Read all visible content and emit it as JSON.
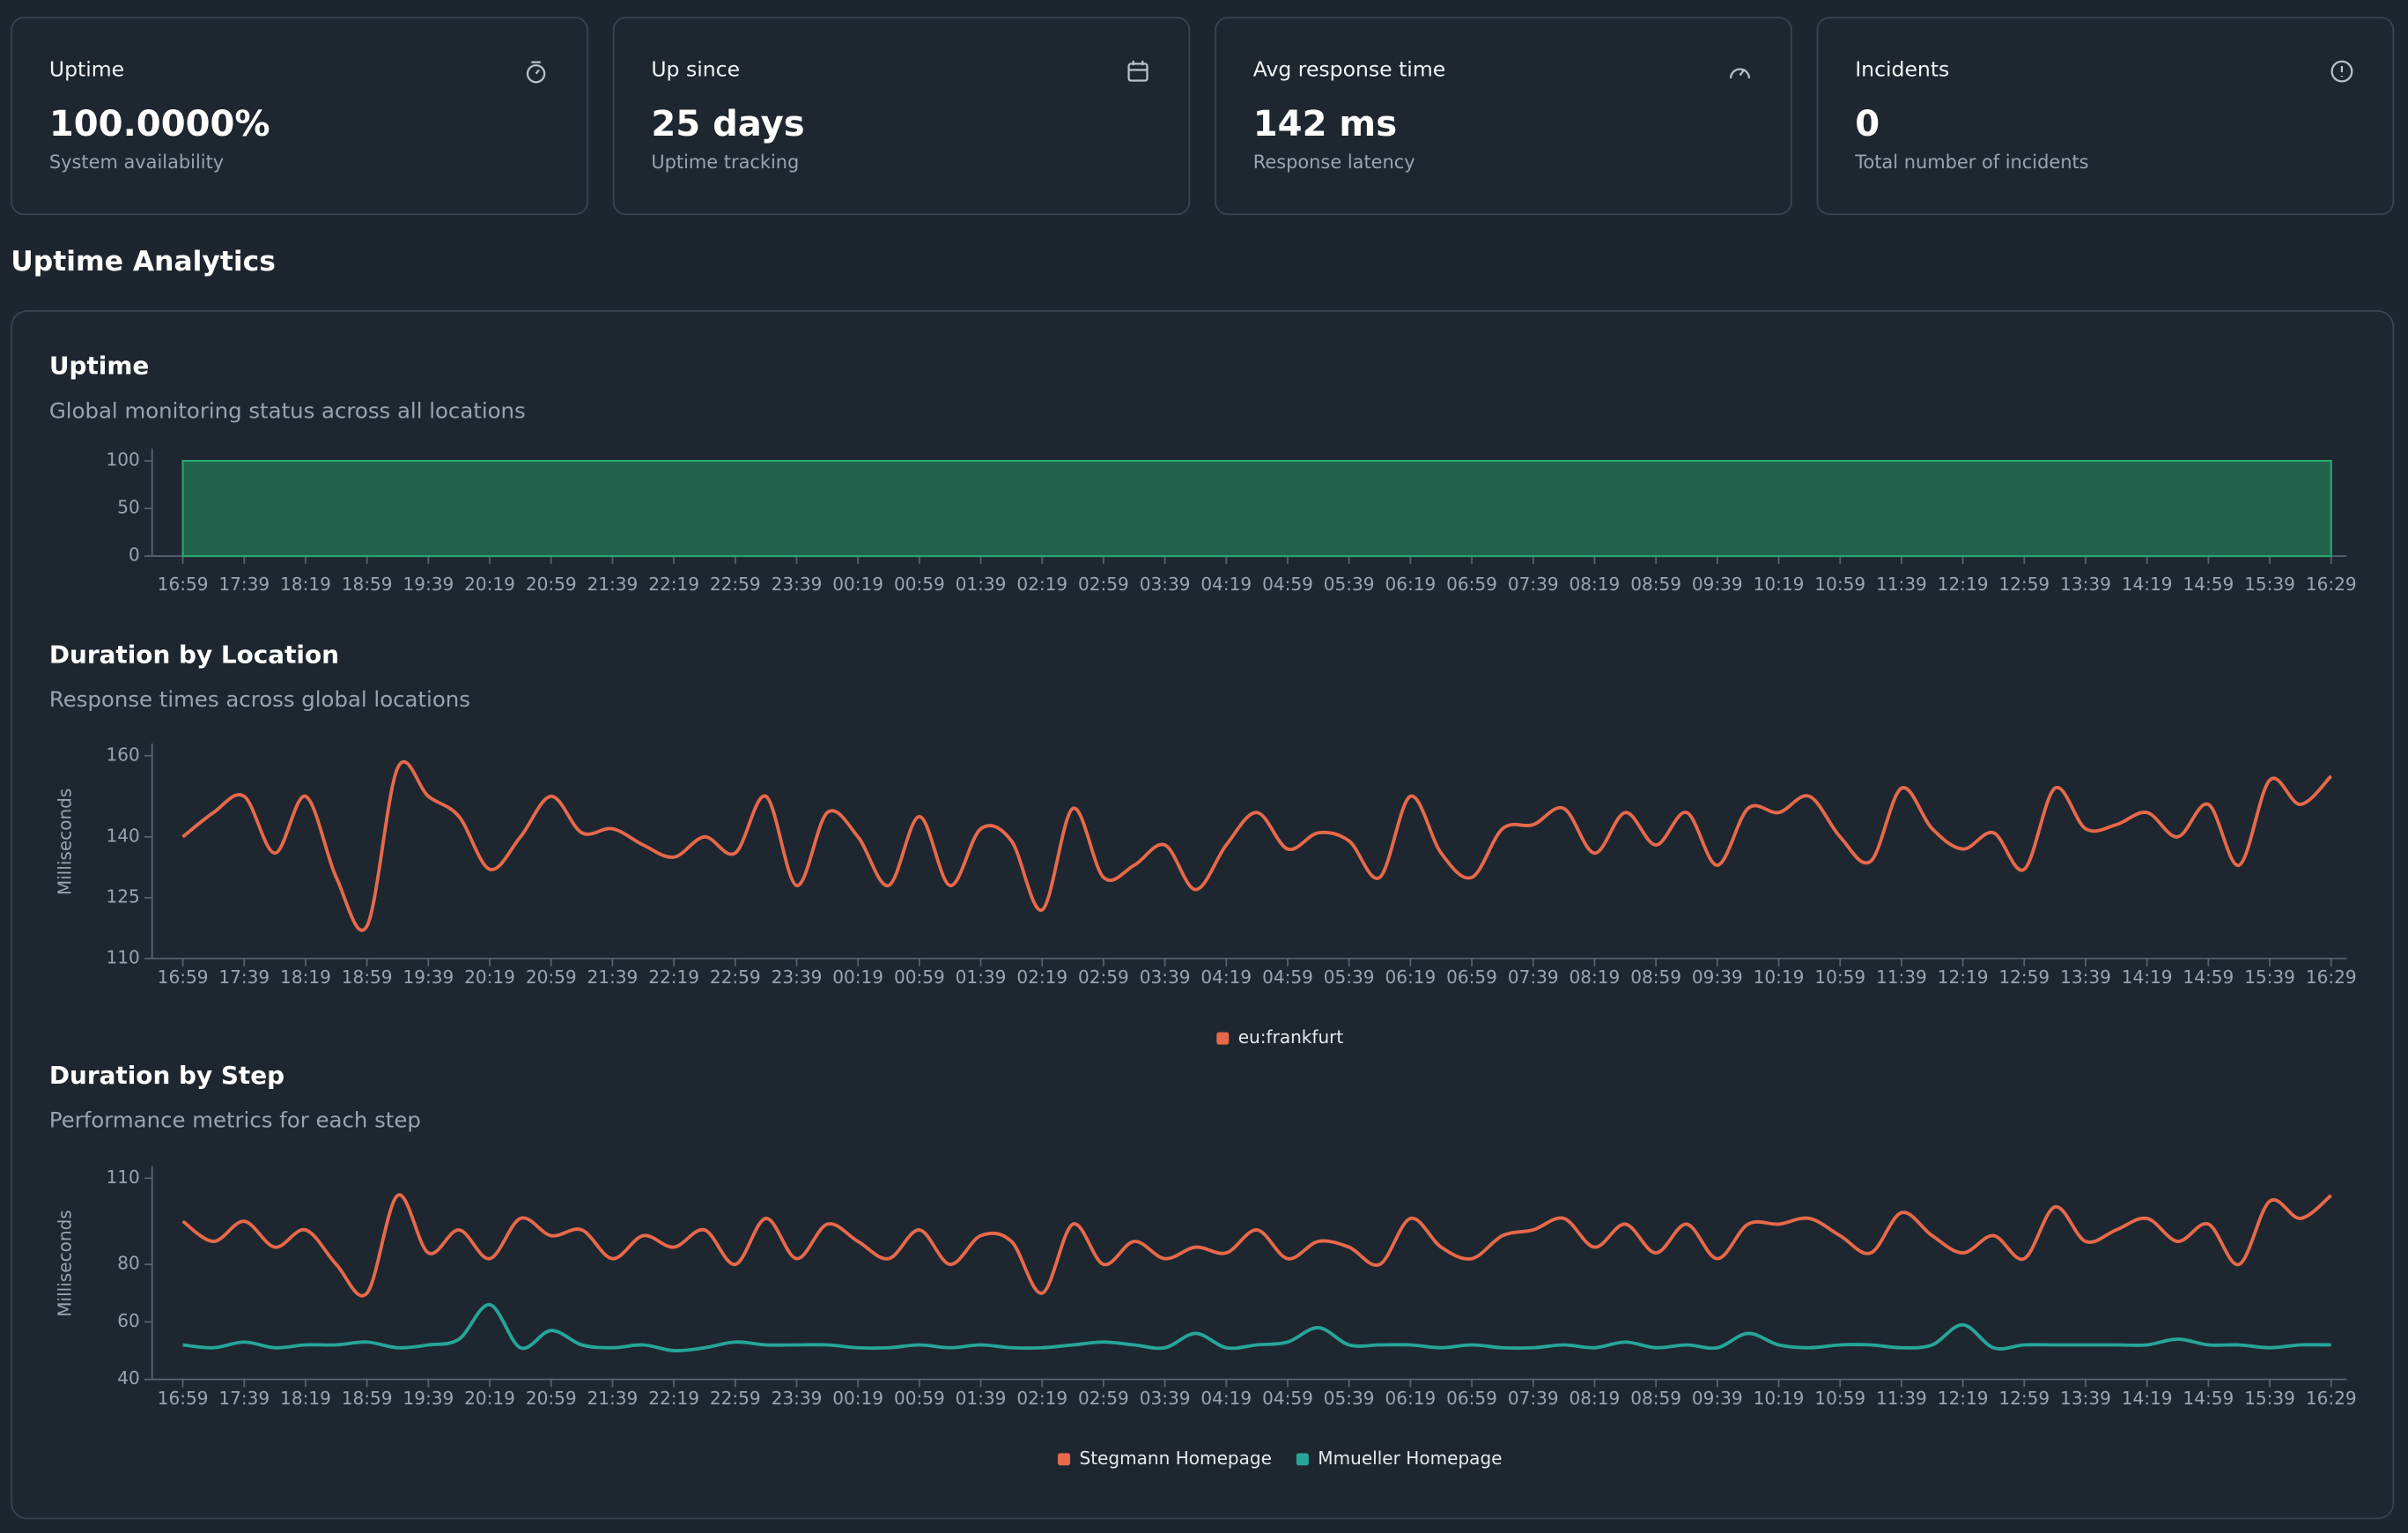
{
  "cards": [
    {
      "label": "Uptime",
      "value": "100.0000%",
      "caption": "System availability"
    },
    {
      "label": "Up since",
      "value": "25 days",
      "caption": "Uptime tracking"
    },
    {
      "label": "Avg response time",
      "value": "142 ms",
      "caption": "Response latency"
    },
    {
      "label": "Incidents",
      "value": "0",
      "caption": "Total number of incidents"
    }
  ],
  "section_title": "Uptime Analytics",
  "chart_data": [
    {
      "type": "area",
      "title": "Uptime",
      "subtitle": "Global monitoring status across all locations",
      "categories": [
        "16:59",
        null,
        "17:39",
        null,
        "18:19",
        null,
        "18:59",
        null,
        "19:39",
        null,
        "20:19",
        null,
        "20:59",
        null,
        "21:39",
        null,
        "22:19",
        null,
        "22:59",
        null,
        "23:39",
        null,
        "00:19",
        null,
        "00:59",
        null,
        "01:39",
        null,
        "02:19",
        null,
        "02:59",
        null,
        "03:39",
        null,
        "04:19",
        null,
        "04:59",
        null,
        "05:39",
        null,
        "06:19",
        null,
        "06:59",
        null,
        "07:39",
        null,
        "08:19",
        null,
        "08:59",
        null,
        "09:39",
        null,
        "10:19",
        null,
        "10:59",
        null,
        "11:39",
        null,
        "12:19",
        null,
        "12:59",
        null,
        "13:39",
        null,
        "14:19",
        null,
        "14:59",
        null,
        "15:39",
        null,
        "16:29"
      ],
      "series": [
        {
          "color": "#27a86e",
          "values": [
            100,
            100,
            100,
            100,
            100,
            100,
            100,
            100,
            100,
            100,
            100,
            100,
            100,
            100,
            100,
            100,
            100,
            100,
            100,
            100,
            100,
            100,
            100,
            100,
            100,
            100,
            100,
            100,
            100,
            100,
            100,
            100,
            100,
            100,
            100,
            100,
            100,
            100,
            100,
            100,
            100,
            100,
            100,
            100,
            100,
            100,
            100,
            100,
            100,
            100,
            100,
            100,
            100,
            100,
            100,
            100,
            100,
            100,
            100,
            100,
            100,
            100,
            100,
            100,
            100,
            100,
            100,
            100,
            100,
            100,
            100
          ]
        }
      ],
      "ylim": [
        0,
        100
      ],
      "yticks": [
        0,
        50,
        100
      ]
    },
    {
      "type": "line",
      "title": "Duration by Location",
      "subtitle": "Response times across global locations",
      "y_label": "Milliseconds",
      "categories": [
        "16:59",
        null,
        "17:39",
        null,
        "18:19",
        null,
        "18:59",
        null,
        "19:39",
        null,
        "20:19",
        null,
        "20:59",
        null,
        "21:39",
        null,
        "22:19",
        null,
        "22:59",
        null,
        "23:39",
        null,
        "00:19",
        null,
        "00:59",
        null,
        "01:39",
        null,
        "02:19",
        null,
        "02:59",
        null,
        "03:39",
        null,
        "04:19",
        null,
        "04:59",
        null,
        "05:39",
        null,
        "06:19",
        null,
        "06:59",
        null,
        "07:39",
        null,
        "08:19",
        null,
        "08:59",
        null,
        "09:39",
        null,
        "10:19",
        null,
        "10:59",
        null,
        "11:39",
        null,
        "12:19",
        null,
        "12:59",
        null,
        "13:39",
        null,
        "14:19",
        null,
        "14:59",
        null,
        "15:39",
        null,
        "16:29"
      ],
      "series": [
        {
          "name": "eu:frankfurt",
          "color": "#e8694a",
          "values": [
            140,
            146,
            150,
            136,
            150,
            130,
            118,
            157,
            150,
            145,
            132,
            140,
            150,
            141,
            142,
            138,
            135,
            140,
            136,
            150,
            128,
            146,
            140,
            128,
            145,
            128,
            142,
            139,
            122,
            147,
            130,
            133,
            138,
            127,
            138,
            146,
            137,
            141,
            139,
            130,
            150,
            136,
            130,
            142,
            143,
            147,
            136,
            146,
            138,
            146,
            133,
            147,
            146,
            150,
            140,
            134,
            152,
            142,
            137,
            141,
            132,
            152,
            142,
            143,
            146,
            140,
            148,
            133,
            154,
            148,
            155
          ]
        }
      ],
      "ylim": [
        110,
        160
      ],
      "yticks": [
        110,
        125,
        140,
        160
      ],
      "legend": "bottom"
    },
    {
      "type": "line",
      "title": "Duration by Step",
      "subtitle": "Performance metrics for each step",
      "y_label": "Milliseconds",
      "categories": [
        "16:59",
        null,
        "17:39",
        null,
        "18:19",
        null,
        "18:59",
        null,
        "19:39",
        null,
        "20:19",
        null,
        "20:59",
        null,
        "21:39",
        null,
        "22:19",
        null,
        "22:59",
        null,
        "23:39",
        null,
        "00:19",
        null,
        "00:59",
        null,
        "01:39",
        null,
        "02:19",
        null,
        "02:59",
        null,
        "03:39",
        null,
        "04:19",
        null,
        "04:59",
        null,
        "05:39",
        null,
        "06:19",
        null,
        "06:59",
        null,
        "07:39",
        null,
        "08:19",
        null,
        "08:59",
        null,
        "09:39",
        null,
        "10:19",
        null,
        "10:59",
        null,
        "11:39",
        null,
        "12:19",
        null,
        "12:59",
        null,
        "13:39",
        null,
        "14:19",
        null,
        "14:59",
        null,
        "15:39",
        null,
        "16:29"
      ],
      "series": [
        {
          "name": "Stegmann Homepage",
          "color": "#e8694a",
          "values": [
            95,
            88,
            95,
            86,
            92,
            80,
            70,
            104,
            84,
            92,
            82,
            96,
            90,
            92,
            82,
            90,
            86,
            92,
            80,
            96,
            82,
            94,
            88,
            82,
            92,
            80,
            90,
            88,
            70,
            94,
            80,
            88,
            82,
            86,
            84,
            92,
            82,
            88,
            86,
            80,
            96,
            86,
            82,
            90,
            92,
            96,
            86,
            94,
            84,
            94,
            82,
            94,
            94,
            96,
            90,
            84,
            98,
            90,
            84,
            90,
            82,
            100,
            88,
            92,
            96,
            88,
            94,
            80,
            102,
            96,
            104
          ]
        },
        {
          "name": "Mmueller Homepage",
          "color": "#26a69a",
          "values": [
            52,
            51,
            53,
            51,
            52,
            52,
            53,
            51,
            52,
            54,
            66,
            51,
            57,
            52,
            51,
            52,
            50,
            51,
            53,
            52,
            52,
            52,
            51,
            51,
            52,
            51,
            52,
            51,
            51,
            52,
            53,
            52,
            51,
            56,
            51,
            52,
            53,
            58,
            52,
            52,
            52,
            51,
            52,
            51,
            51,
            52,
            51,
            53,
            51,
            52,
            51,
            56,
            52,
            51,
            52,
            52,
            51,
            52,
            59,
            51,
            52,
            52,
            52,
            52,
            52,
            54,
            52,
            52,
            51,
            52,
            52
          ]
        }
      ],
      "ylim": [
        40,
        110
      ],
      "yticks": [
        40,
        60,
        80,
        110
      ],
      "legend": "bottom"
    }
  ]
}
